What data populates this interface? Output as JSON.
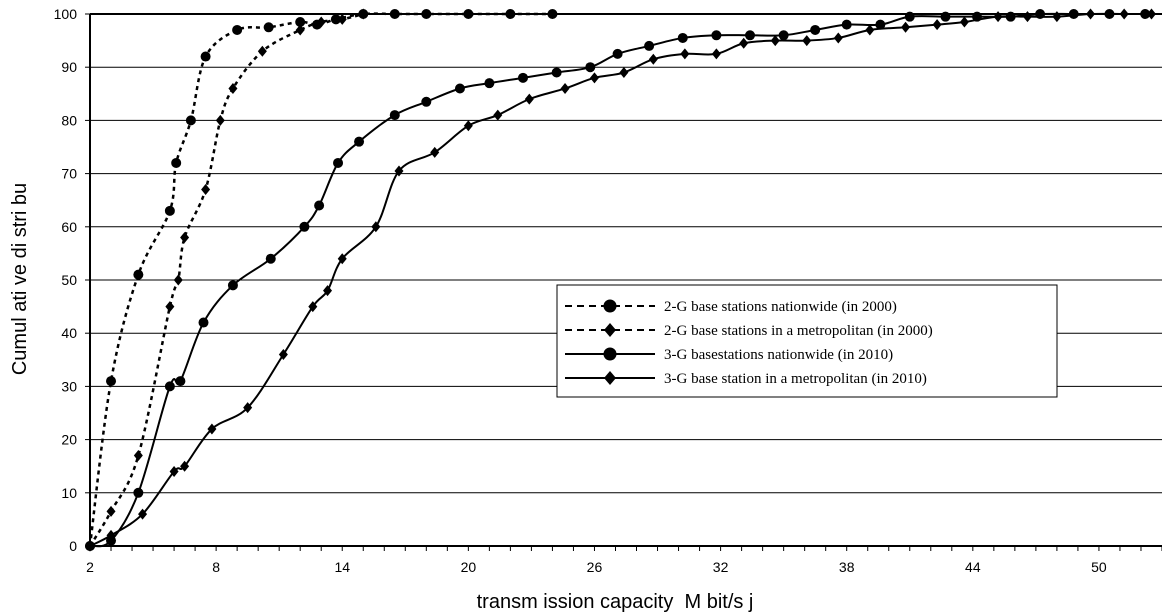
{
  "chart_data": {
    "type": "line",
    "xlabel": "transm ission capacity  M bit/s j",
    "ylabel": "Cumul ati ve di stri bu",
    "xlim": [
      2,
      53
    ],
    "ylim": [
      0,
      100
    ],
    "x_ticks": [
      2,
      8,
      14,
      20,
      26,
      32,
      38,
      44,
      50
    ],
    "y_ticks": [
      0,
      10,
      20,
      30,
      40,
      50,
      60,
      70,
      80,
      90,
      100
    ],
    "grid": "horizontal",
    "legend_position": "right",
    "series": [
      {
        "name": "2-G base stations nationwide (in 2000)",
        "line_style": "dashed",
        "marker": "circle",
        "points": [
          [
            2,
            0
          ],
          [
            3,
            31
          ],
          [
            4.3,
            51
          ],
          [
            5.8,
            63
          ],
          [
            6.1,
            72
          ],
          [
            6.8,
            80
          ],
          [
            7.5,
            92
          ],
          [
            9,
            97
          ],
          [
            10.5,
            97.5
          ],
          [
            12,
            98.5
          ],
          [
            12.8,
            98
          ],
          [
            13.7,
            99
          ],
          [
            15,
            100
          ],
          [
            16.5,
            100
          ],
          [
            18,
            100
          ],
          [
            20,
            100
          ],
          [
            22,
            100
          ],
          [
            24,
            100
          ]
        ]
      },
      {
        "name": "2-G base stations in a metropolitan (in 2000)",
        "line_style": "dashed",
        "marker": "diamond",
        "points": [
          [
            2,
            0
          ],
          [
            3,
            6.5
          ],
          [
            4.3,
            17
          ],
          [
            5.8,
            45
          ],
          [
            6.2,
            50
          ],
          [
            6.5,
            58
          ],
          [
            7.5,
            67
          ],
          [
            8.2,
            80
          ],
          [
            8.8,
            86
          ],
          [
            10.2,
            93
          ],
          [
            12,
            97
          ],
          [
            13,
            98.5
          ],
          [
            14,
            99
          ],
          [
            15,
            100
          ]
        ]
      },
      {
        "name": "3-G basestations nationwide (in 2010)",
        "line_style": "solid",
        "marker": "circle",
        "points": [
          [
            2,
            0
          ],
          [
            3,
            1
          ],
          [
            4.3,
            10
          ],
          [
            5.8,
            30
          ],
          [
            6.3,
            31
          ],
          [
            7.4,
            42
          ],
          [
            8.8,
            49
          ],
          [
            10.6,
            54
          ],
          [
            12.2,
            60
          ],
          [
            12.9,
            64
          ],
          [
            13.8,
            72
          ],
          [
            14.8,
            76
          ],
          [
            16.5,
            81
          ],
          [
            18,
            83.5
          ],
          [
            19.6,
            86
          ],
          [
            21,
            87
          ],
          [
            22.6,
            88
          ],
          [
            24.2,
            89
          ],
          [
            25.8,
            90
          ],
          [
            27.1,
            92.5
          ],
          [
            28.6,
            94
          ],
          [
            30.2,
            95.5
          ],
          [
            31.8,
            96
          ],
          [
            33.4,
            96
          ],
          [
            35,
            96
          ],
          [
            36.5,
            97
          ],
          [
            38,
            98
          ],
          [
            39.6,
            98
          ],
          [
            41,
            99.5
          ],
          [
            42.7,
            99.5
          ],
          [
            44.2,
            99.5
          ],
          [
            45.8,
            99.5
          ],
          [
            47.2,
            100
          ],
          [
            48.8,
            100
          ],
          [
            50.5,
            100
          ],
          [
            52.2,
            100
          ]
        ]
      },
      {
        "name": "3-G base station in a metropolitan (in 2010)",
        "line_style": "solid",
        "marker": "diamond",
        "points": [
          [
            2,
            0
          ],
          [
            3,
            2
          ],
          [
            4.5,
            6
          ],
          [
            6,
            14
          ],
          [
            6.5,
            15
          ],
          [
            7.8,
            22
          ],
          [
            9.5,
            26
          ],
          [
            11.2,
            36
          ],
          [
            12.6,
            45
          ],
          [
            13.3,
            48
          ],
          [
            14,
            54
          ],
          [
            15.6,
            60
          ],
          [
            16.7,
            70.5
          ],
          [
            18.4,
            74
          ],
          [
            20,
            79
          ],
          [
            21.4,
            81
          ],
          [
            22.9,
            84
          ],
          [
            24.6,
            86
          ],
          [
            26,
            88
          ],
          [
            27.4,
            89
          ],
          [
            28.8,
            91.5
          ],
          [
            30.3,
            92.5
          ],
          [
            31.8,
            92.5
          ],
          [
            33.1,
            94.5
          ],
          [
            34.6,
            95
          ],
          [
            36.1,
            95
          ],
          [
            37.6,
            95.5
          ],
          [
            39.1,
            97
          ],
          [
            40.8,
            97.5
          ],
          [
            42.3,
            98
          ],
          [
            43.6,
            98.5
          ],
          [
            45.2,
            99.5
          ],
          [
            46.6,
            99.5
          ],
          [
            48,
            99.5
          ],
          [
            49.6,
            100
          ],
          [
            51.2,
            100
          ],
          [
            52.5,
            100
          ]
        ]
      }
    ]
  }
}
